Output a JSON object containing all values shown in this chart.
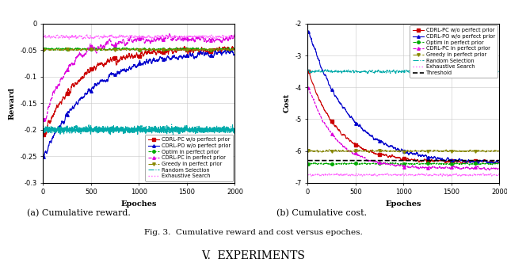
{
  "epochs": 2000,
  "reward_ylim": [
    -0.3,
    0.0
  ],
  "reward_yticks": [
    0.0,
    -0.05,
    -0.1,
    -0.15,
    -0.2,
    -0.25,
    -0.3
  ],
  "reward_yticklabels": [
    "0",
    "-0.05",
    "-0.1",
    "-0.15",
    "-0.2",
    "-0.25",
    "-0.3"
  ],
  "cost_ylim": [
    -7.0,
    -2.0
  ],
  "cost_yticks": [
    -2,
    -3,
    -4,
    -5,
    -6,
    -7
  ],
  "cost_yticklabels": [
    "-2",
    "-3",
    "-4",
    "-5",
    "-6",
    "-7"
  ],
  "xticks": [
    0,
    500,
    1000,
    1500,
    2000
  ],
  "xticklabels": [
    "0",
    "500",
    "1000",
    "1500",
    "2000"
  ],
  "xlabel": "Epoches",
  "reward_ylabel": "Reward",
  "cost_ylabel": "Cost",
  "subtitle_a": "(a) Cumulative reward.",
  "subtitle_b": "(b) Cumulative cost.",
  "fig_caption": "Fig. 3.  Cumulative reward and cost versus epoches.",
  "section_title_pre": "V. ",
  "section_title_main": "Experiments"
}
